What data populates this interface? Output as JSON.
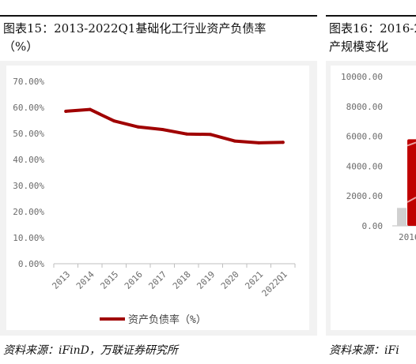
{
  "left": {
    "title_line1": "图表15：2013-2022Q1基础化工行业资产负债率",
    "title_line2": "（%）",
    "source": "资料来源：iFinD，万联证券研究所"
  },
  "right": {
    "title_line1": "图表16：2016-2",
    "title_line2": "产规模变化",
    "source": "资料来源：iFi"
  },
  "colors": {
    "line": "#a00000",
    "panel": "#f2f2f2",
    "bar_red": "#c00000",
    "bar_gray": "#d0d0d0"
  },
  "chart_data": [
    {
      "type": "line",
      "title": "",
      "xlabel": "",
      "ylabel": "",
      "categories": [
        "2013",
        "2014",
        "2015",
        "2016",
        "2017",
        "2018",
        "2019",
        "2020",
        "2021",
        "2022Q1"
      ],
      "series": [
        {
          "name": "资产负债率（%）",
          "values": [
            58.5,
            59.2,
            54.8,
            52.5,
            51.5,
            49.8,
            49.6,
            47.1,
            46.4,
            46.6
          ]
        }
      ],
      "y_ticks": [
        "0.00%",
        "10.00%",
        "20.00%",
        "30.00%",
        "40.00%",
        "50.00%",
        "60.00%",
        "70.00%"
      ],
      "ylim": [
        0,
        70
      ],
      "grid": false,
      "legend": "bottom"
    },
    {
      "type": "bar",
      "title": "",
      "categories": [
        "2016"
      ],
      "y_ticks": [
        "0.00",
        "2000.00",
        "4000.00",
        "6000.00",
        "8000.00",
        "10000.00"
      ],
      "ylim": [
        0,
        10000
      ],
      "series": [
        {
          "values": [
            1200
          ]
        },
        {
          "values": [
            5800
          ]
        }
      ],
      "note": "partially visible, cropped at right edge"
    }
  ]
}
